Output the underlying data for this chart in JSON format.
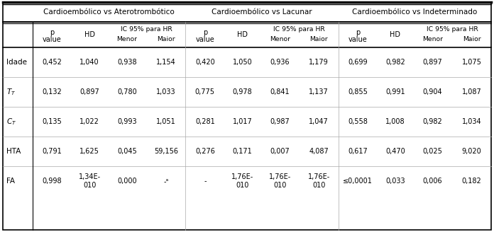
{
  "group_headers": [
    "Cardioembólico vs Aterotrombótico",
    "Cardioembólico vs Lacunar",
    "Cardioembólico vs Indeterminado"
  ],
  "row_labels": [
    "Idade",
    "T_T",
    "C_T",
    "HTA",
    "FA"
  ],
  "rows": [
    [
      "0,452",
      "1,040",
      "0,938",
      "1,154",
      "0,420",
      "1,050",
      "0,936",
      "1,179",
      "0,699",
      "0,982",
      "0,897",
      "1,075"
    ],
    [
      "0,132",
      "0,897",
      "0,780",
      "1,033",
      "0,775",
      "0,978",
      "0,841",
      "1,137",
      "0,855",
      "0,991",
      "0,904",
      "1,087"
    ],
    [
      "0,135",
      "1,022",
      "0,993",
      "1,051",
      "0,281",
      "1,017",
      "0,987",
      "1,047",
      "0,558",
      "1,008",
      "0,982",
      "1,034"
    ],
    [
      "0,791",
      "1,625",
      "0,045",
      "59,156",
      "0,276",
      "0,171",
      "0,007",
      "4,087",
      "0,617",
      "0,470",
      "0,025",
      "9,020"
    ],
    [
      "0,998",
      "1,34E-\n010",
      "0,000",
      "-ᵃ",
      "-",
      "1,76E-\n010",
      "1,76E-\n010",
      "1,76E-\n010",
      "≤0,0001",
      "0,033",
      "0,006",
      "0,182"
    ]
  ],
  "font_size": 7.0,
  "header_font_size": 7.5,
  "text_color": "#000000",
  "border_color": "#000000",
  "bg_color": "#ffffff"
}
